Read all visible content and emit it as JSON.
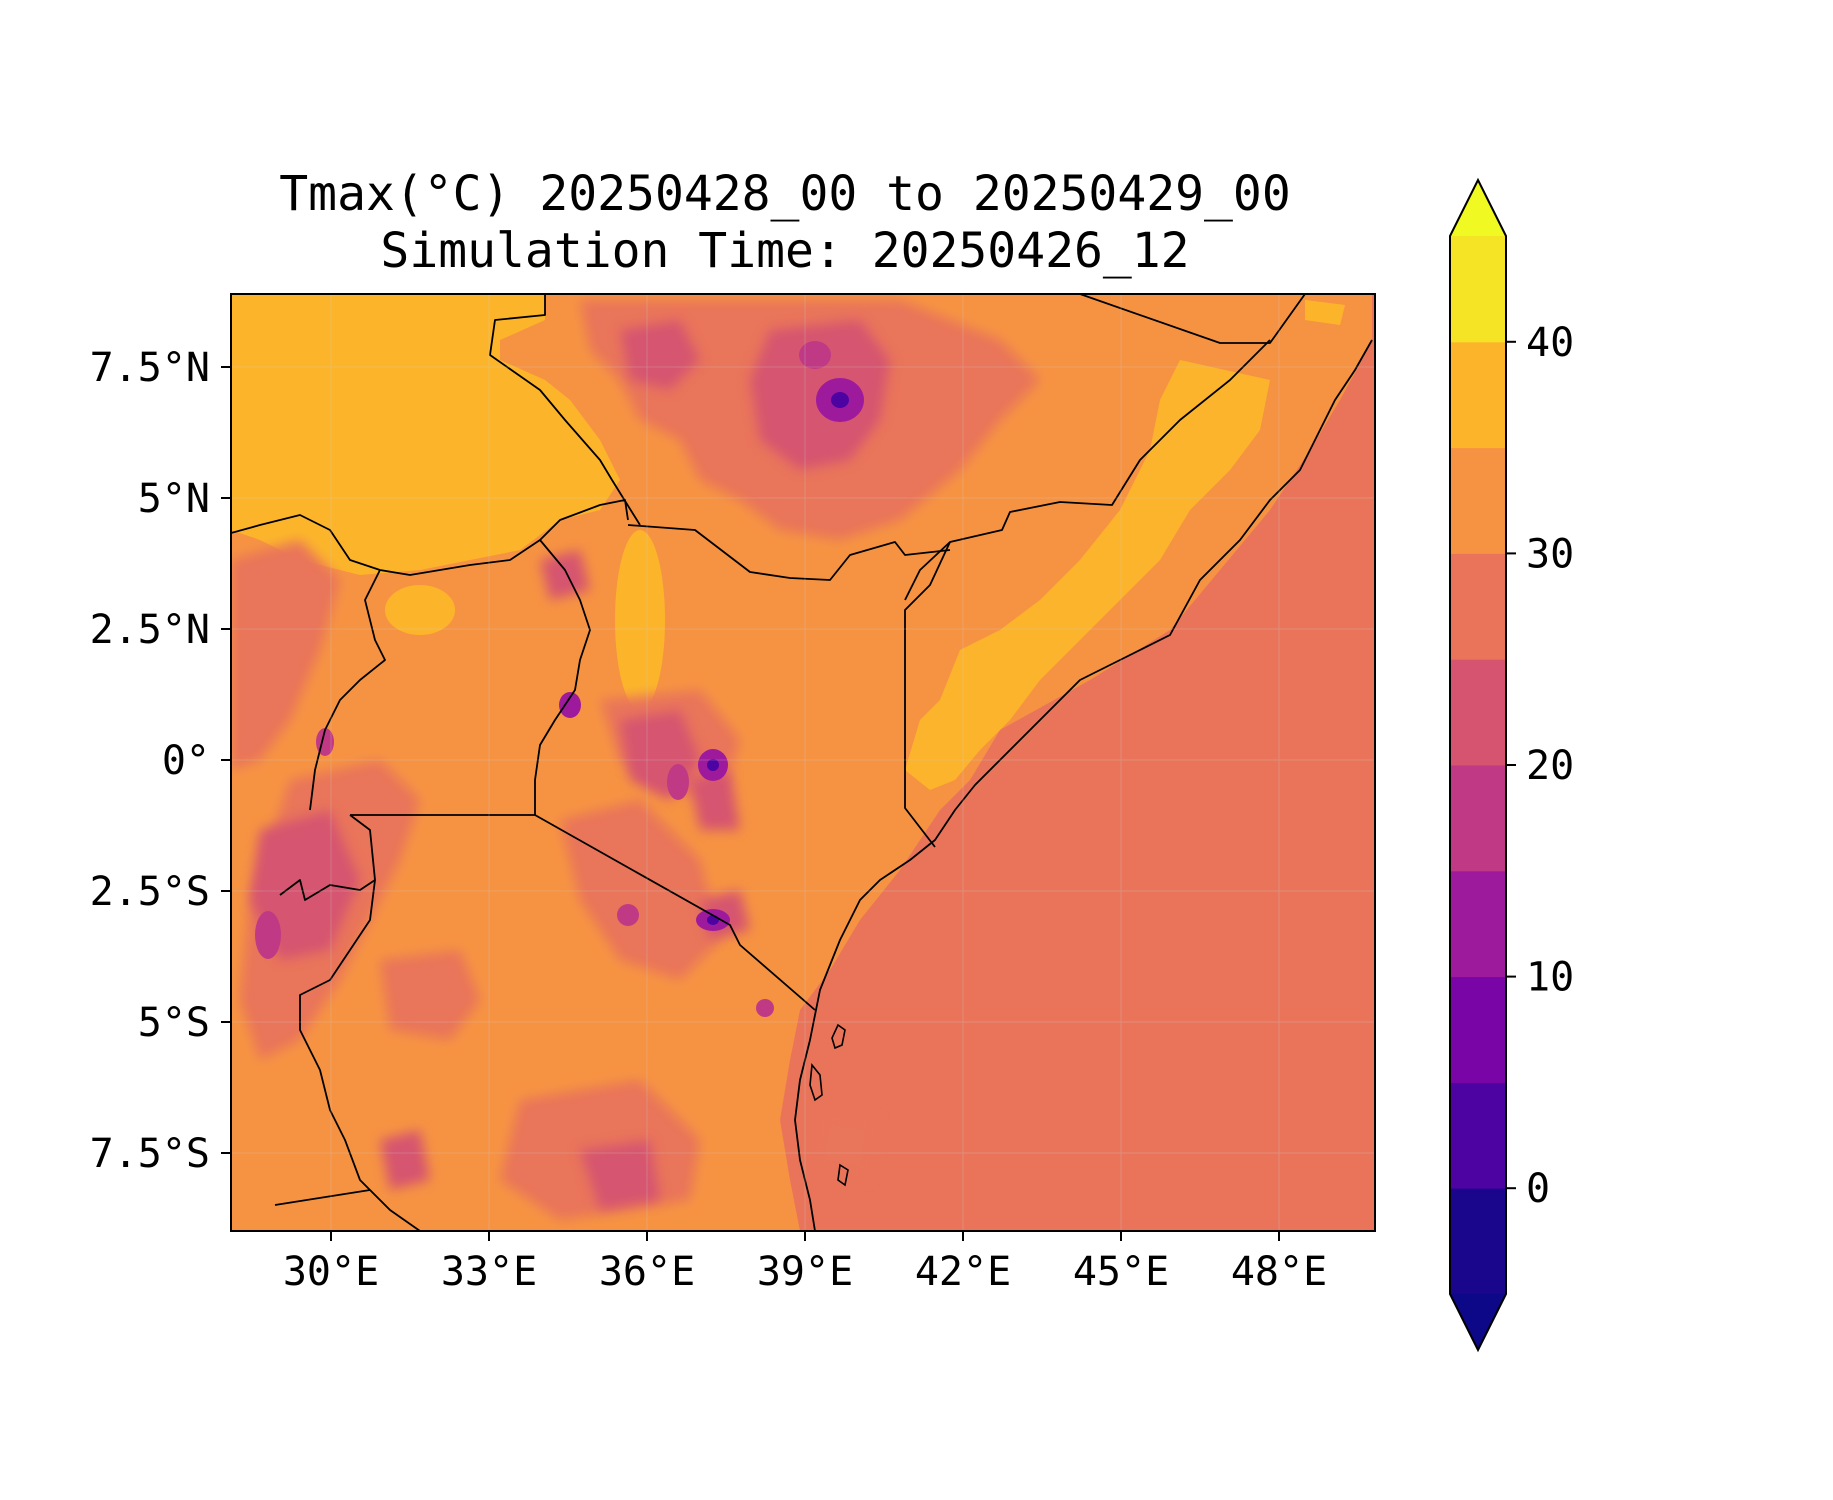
{
  "title": {
    "line1": "Tmax(°C) 20250428_00 to 20250429_00",
    "line2": "Simulation Time: 20250426_12"
  },
  "map": {
    "lon_range": [
      27.0,
      51.0
    ],
    "lat_range": [
      -9.0,
      9.0
    ],
    "x_ticks": [
      "30°E",
      "33°E",
      "36°E",
      "39°E",
      "42°E",
      "45°E",
      "48°E"
    ],
    "y_ticks": [
      "7.5°N",
      "5°N",
      "2.5°N",
      "0°",
      "2.5°S",
      "5°S",
      "7.5°S"
    ],
    "field": "Tmax (°C)",
    "ocean_value_approx": 28,
    "boundaries": "country borders and coastline (black lines)"
  },
  "colorbar": {
    "colormap": "plasma",
    "extend": "both",
    "ticks": [
      "0",
      "10",
      "20",
      "30",
      "40"
    ],
    "levels": [
      -5,
      0,
      5,
      10,
      15,
      20,
      25,
      30,
      35,
      40,
      45
    ],
    "colors": [
      "#1a068c",
      "#4d02a2",
      "#7a05a6",
      "#9e1a9d",
      "#bf3985",
      "#d6546f",
      "#e9745a",
      "#f69342",
      "#fcb52b",
      "#f4e425"
    ],
    "under_color": "#0d0887",
    "over_color": "#f0f921"
  }
}
